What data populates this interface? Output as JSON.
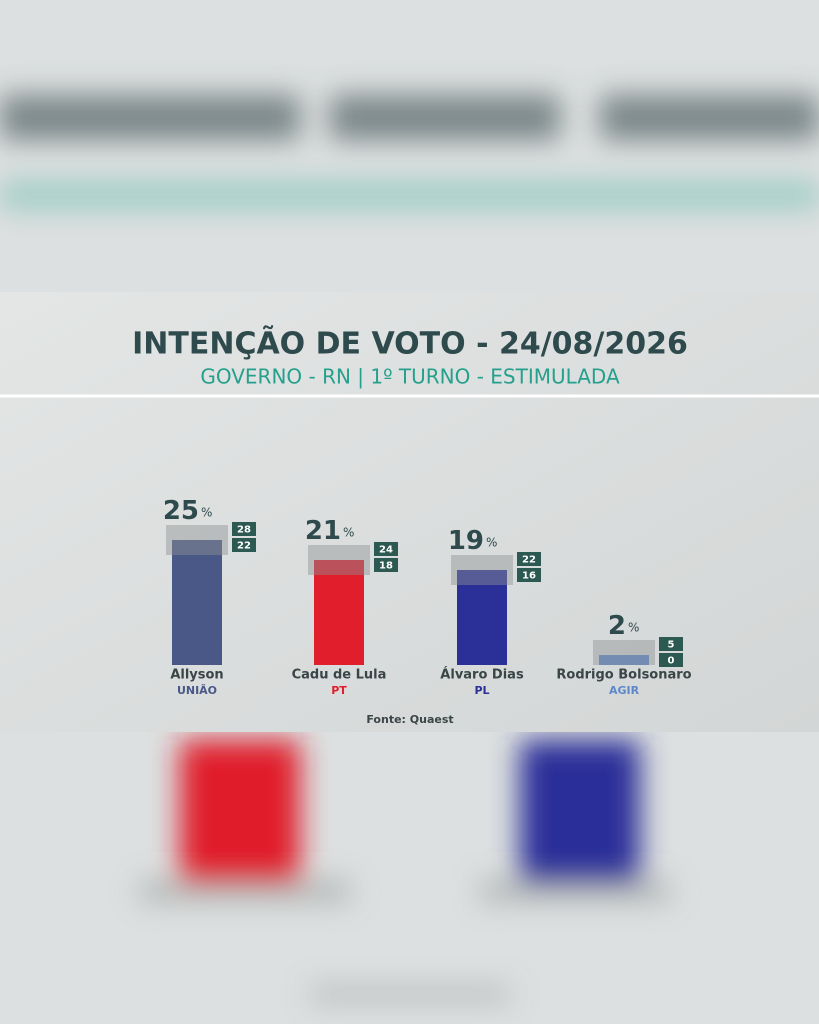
{
  "chart_data": {
    "type": "bar",
    "title": "INTENÇÃO DE VOTO - 24/08/2026",
    "subtitle": "GOVERNO - RN | 1º TURNO - ESTIMULADA",
    "categories": [
      "Allyson",
      "Cadu de Lula",
      "Álvaro Dias",
      "Rodrigo Bolsonaro"
    ],
    "parties": [
      "UNIÃO",
      "PT",
      "PL",
      "AGIR"
    ],
    "values": [
      25,
      21,
      19,
      2
    ],
    "value_unit": "%",
    "margin_upper": [
      28,
      24,
      22,
      5
    ],
    "margin_lower": [
      22,
      18,
      16,
      0
    ],
    "colors": [
      "#4a5888",
      "#e01e2c",
      "#2b2f98",
      "#5f88c8"
    ],
    "source": "Fonte: Quaest"
  }
}
